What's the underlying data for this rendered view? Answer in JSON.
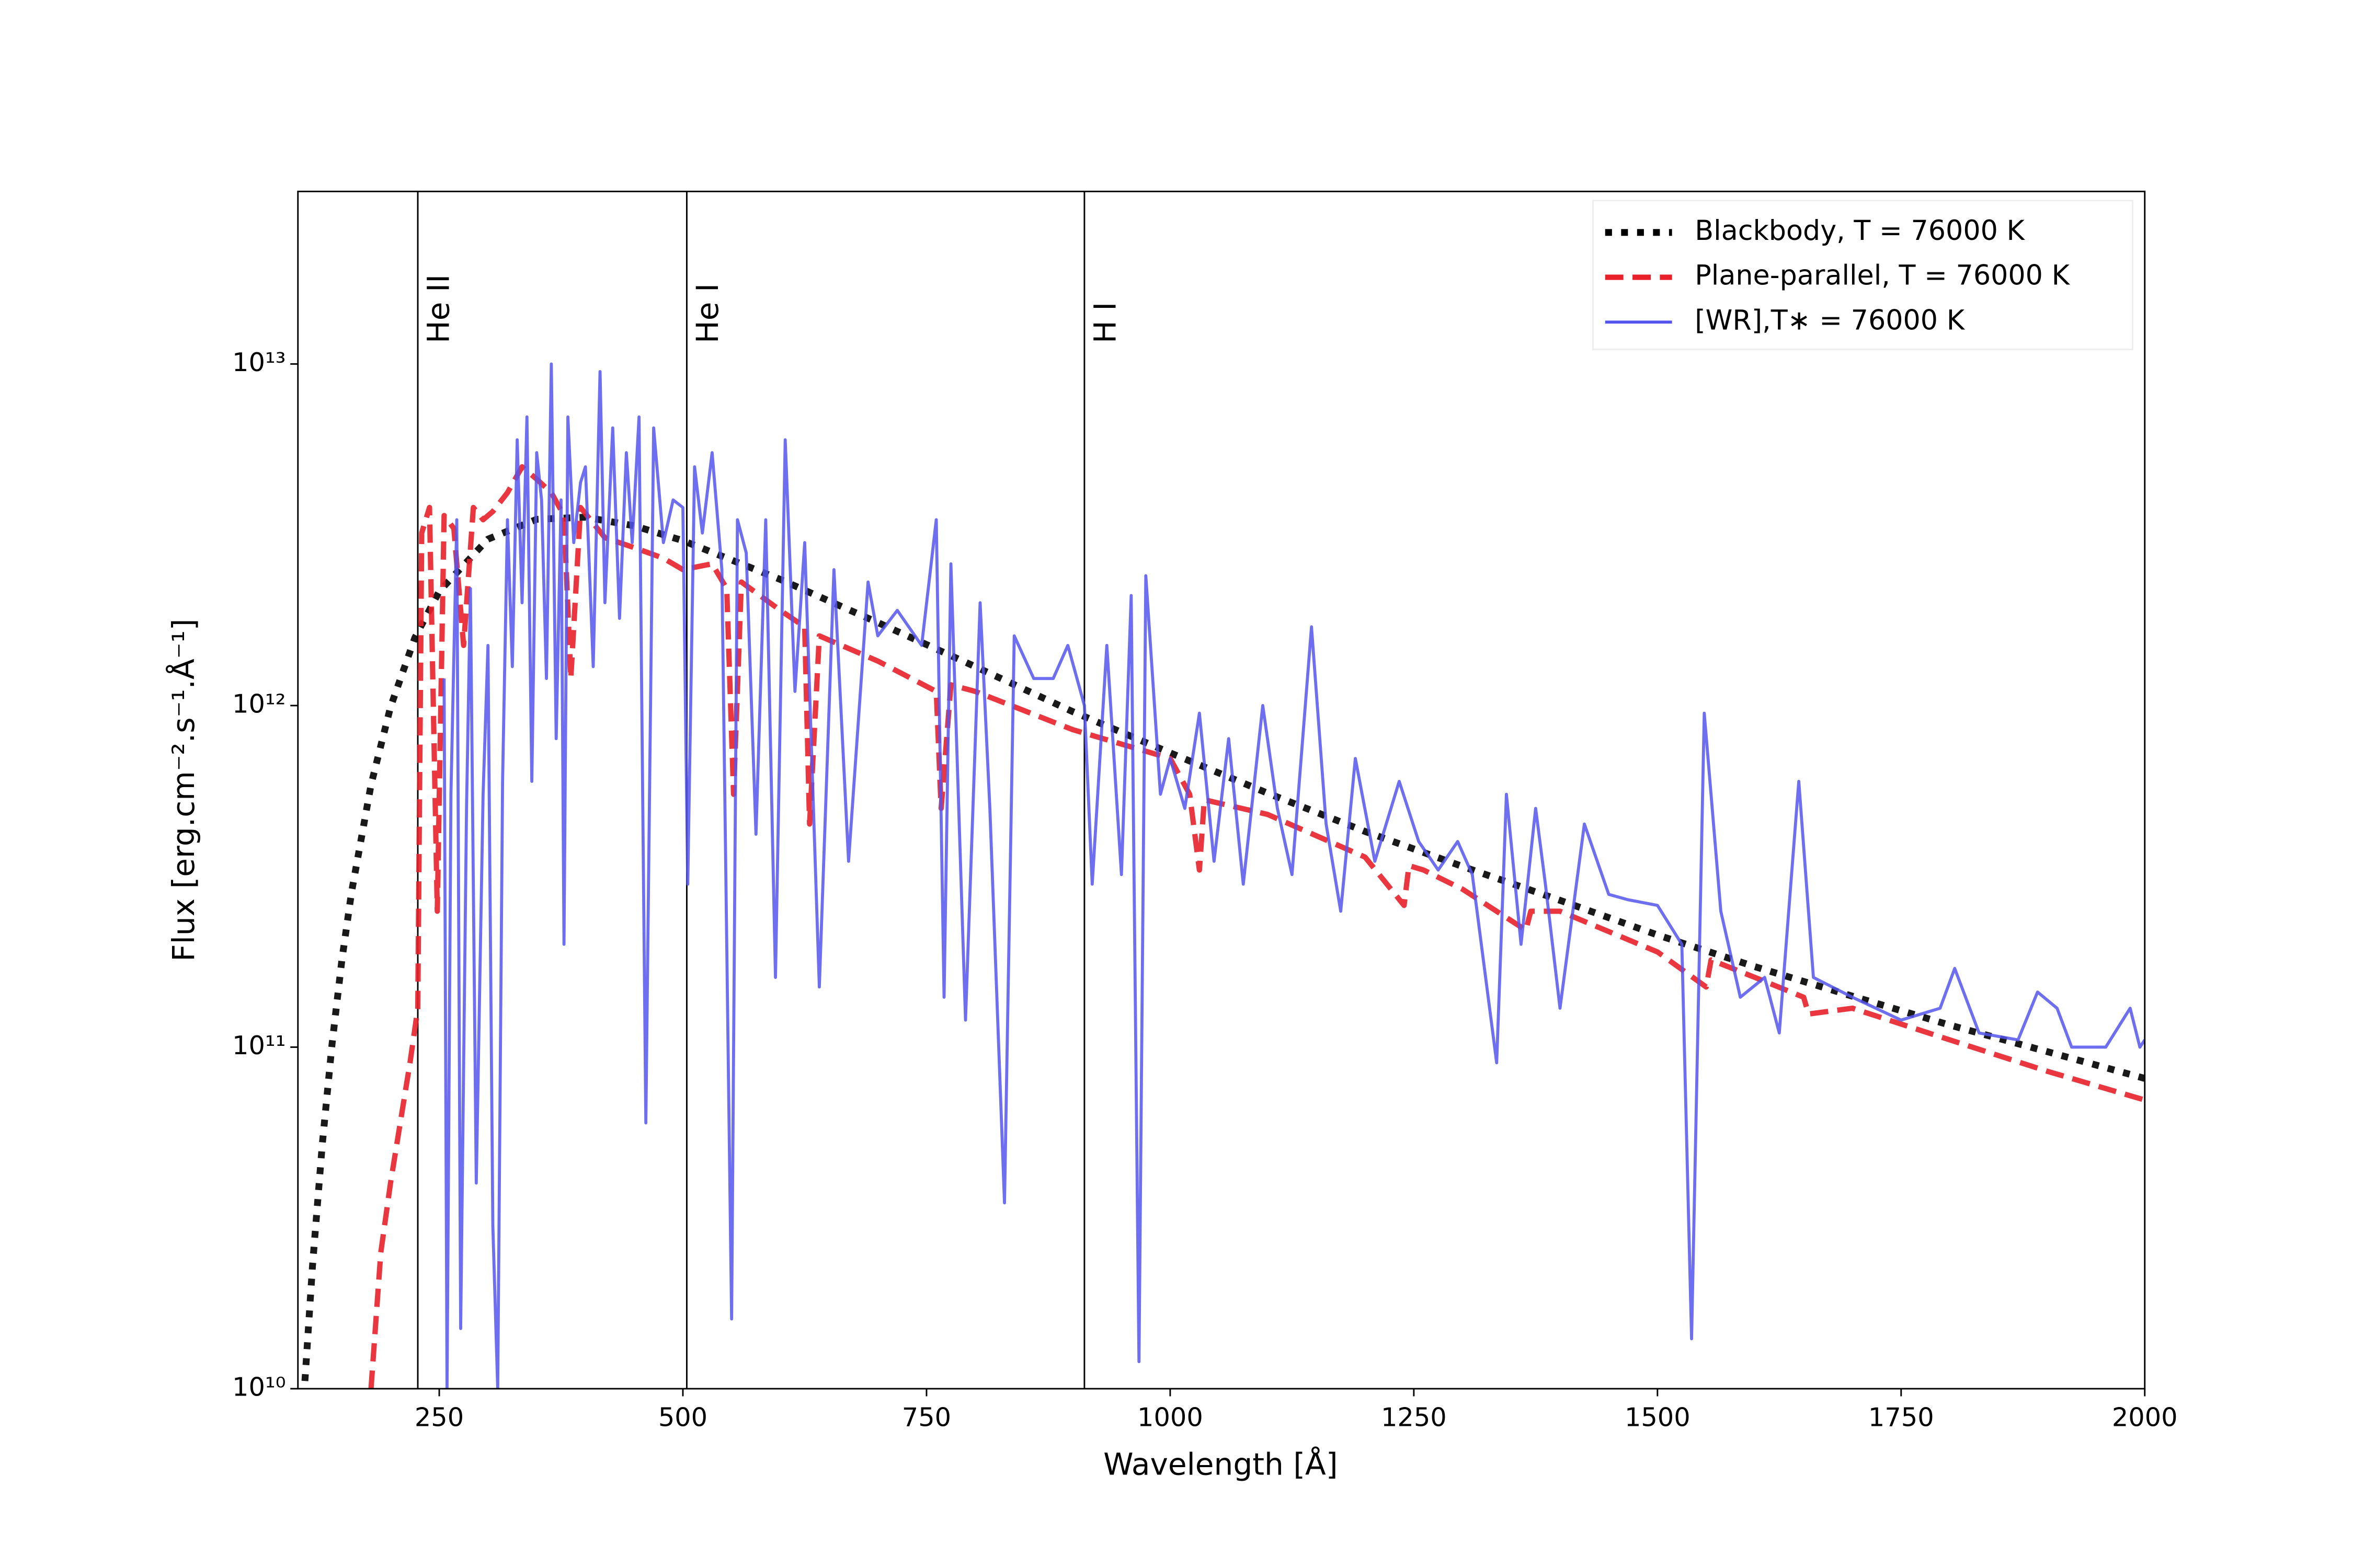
{
  "chart_data": {
    "type": "line",
    "xlabel": "Wavelength [Å]",
    "ylabel": "Flux [erg.cm⁻².s⁻¹.Å⁻¹]",
    "xlim": [
      105,
      2000
    ],
    "ylim": [
      10000000000.0,
      32000000000000.0
    ],
    "log_y": true,
    "grid": false,
    "legend": "upper right",
    "xticks": [
      250,
      500,
      750,
      1000,
      1250,
      1500,
      1750,
      2000
    ],
    "yticks": [
      {
        "value": 10000000000.0,
        "label": "10¹⁰"
      },
      {
        "value": 100000000000.0,
        "label": "10¹¹"
      },
      {
        "value": 1000000000000.0,
        "label": "10¹²"
      },
      {
        "value": 10000000000000.0,
        "label": "10¹³"
      }
    ],
    "annotations": [
      {
        "x": 228,
        "label": "He II"
      },
      {
        "x": 504,
        "label": "He I"
      },
      {
        "x": 912,
        "label": "H I"
      }
    ],
    "series": [
      {
        "name": "Blackbody, T = 76000 K",
        "color": "#000000",
        "style": "dotted",
        "x": [
          110,
          120,
          130,
          140,
          150,
          160,
          180,
          200,
          225,
          250,
          300,
          350,
          400,
          450,
          500,
          600,
          700,
          800,
          900,
          1000,
          1100,
          1200,
          1300,
          1400,
          1500,
          1600,
          1700,
          1800,
          1900,
          2000
        ],
        "values": [
          8500000000.0,
          23000000000.0,
          52000000000.0,
          102000000000.0,
          179000000000.0,
          284000000000.0,
          586000000000.0,
          990000000000.0,
          1580000000000.0,
          2160000000000.0,
          3070000000000.0,
          3510000000000.0,
          3560000000000.0,
          3360000000000.0,
          3040000000000.0,
          2340000000000.0,
          1750000000000.0,
          1300000000000.0,
          960000000000.0,
          727000000000.0,
          554000000000.0,
          428000000000.0,
          338000000000.0,
          269000000000.0,
          213000000000.0,
          172000000000.0,
          141000000000.0,
          116000000000.0,
          97000000000.0,
          81000000000.0
        ]
      },
      {
        "name": "Plane-parallel, T = 76000 K",
        "color": "#e8202a",
        "style": "dashed",
        "x": [
          180,
          190,
          200,
          210,
          220,
          228,
          232,
          240,
          248,
          255,
          265,
          275,
          285,
          295,
          305,
          320,
          335,
          350,
          365,
          378,
          385,
          395,
          420,
          450,
          480,
          500,
          530,
          545,
          552,
          560,
          600,
          625,
          630,
          640,
          700,
          760,
          765,
          775,
          800,
          900,
          1000,
          1020,
          1030,
          1035,
          1100,
          1200,
          1240,
          1245,
          1260,
          1300,
          1365,
          1370,
          1400,
          1500,
          1550,
          1555,
          1600,
          1650,
          1655,
          1700,
          1800,
          1900,
          2000
        ],
        "values": [
          10000000000.0,
          25000000000.0,
          40000000000.0,
          60000000000.0,
          90000000000.0,
          130000000000.0,
          3200000000000.0,
          3800000000000.0,
          250000000000.0,
          3600000000000.0,
          3300000000000.0,
          1500000000000.0,
          3800000000000.0,
          3500000000000.0,
          3700000000000.0,
          4200000000000.0,
          5000000000000.0,
          4600000000000.0,
          4200000000000.0,
          3600000000000.0,
          1200000000000.0,
          3800000000000.0,
          3100000000000.0,
          2900000000000.0,
          2700000000000.0,
          2500000000000.0,
          2600000000000.0,
          2200000000000.0,
          550000000000.0,
          2300000000000.0,
          1900000000000.0,
          1700000000000.0,
          450000000000.0,
          1600000000000.0,
          1350000000000.0,
          1100000000000.0,
          500000000000.0,
          1150000000000.0,
          1100000000000.0,
          850000000000.0,
          700000000000.0,
          550000000000.0,
          330000000000.0,
          530000000000.0,
          480000000000.0,
          360000000000.0,
          260000000000.0,
          340000000000.0,
          330000000000.0,
          290000000000.0,
          220000000000.0,
          250000000000.0,
          250000000000.0,
          190000000000.0,
          150000000000.0,
          180000000000.0,
          160000000000.0,
          140000000000.0,
          125000000000.0,
          130000000000.0,
          105000000000.0,
          85000000000.0,
          70000000000.0
        ]
      },
      {
        "name": "[WR],T∗ = 76000 K",
        "color": "#5555ee",
        "style": "solid",
        "x": [
          255,
          258,
          262,
          268,
          272,
          278,
          282,
          288,
          295,
          300,
          305,
          310,
          315,
          320,
          325,
          330,
          335,
          340,
          345,
          350,
          355,
          360,
          365,
          370,
          375,
          378,
          382,
          388,
          395,
          400,
          408,
          415,
          420,
          428,
          435,
          442,
          448,
          455,
          462,
          470,
          480,
          490,
          500,
          505,
          512,
          520,
          530,
          540,
          550,
          556,
          565,
          575,
          585,
          595,
          605,
          615,
          625,
          640,
          655,
          670,
          690,
          700,
          720,
          745,
          760,
          768,
          775,
          790,
          805,
          815,
          830,
          840,
          860,
          880,
          895,
          912,
          920,
          935,
          950,
          960,
          968,
          975,
          990,
          1000,
          1015,
          1030,
          1045,
          1060,
          1075,
          1095,
          1110,
          1125,
          1145,
          1160,
          1175,
          1190,
          1210,
          1235,
          1255,
          1275,
          1295,
          1310,
          1335,
          1345,
          1360,
          1375,
          1385,
          1400,
          1425,
          1450,
          1470,
          1500,
          1525,
          1535,
          1548,
          1565,
          1585,
          1610,
          1625,
          1645,
          1660,
          1700,
          1750,
          1790,
          1805,
          1830,
          1870,
          1890,
          1910,
          1925,
          1960,
          1985,
          1995,
          2000
        ],
        "values": [
          1200000000000.0,
          10000000000.0,
          550000000000.0,
          3500000000000.0,
          15000000000.0,
          500000000000.0,
          2200000000000.0,
          40000000000.0,
          550000000000.0,
          1500000000000.0,
          30000000000.0,
          10000000000.0,
          600000000000.0,
          3500000000000.0,
          1300000000000.0,
          6000000000000.0,
          2000000000000.0,
          7000000000000.0,
          600000000000.0,
          5500000000000.0,
          4000000000000.0,
          1200000000000.0,
          10000000000000.0,
          800000000000.0,
          4000000000000.0,
          200000000000.0,
          7000000000000.0,
          3000000000000.0,
          4500000000000.0,
          5000000000000.0,
          1300000000000.0,
          9500000000000.0,
          2000000000000.0,
          6500000000000.0,
          1800000000000.0,
          5500000000000.0,
          3000000000000.0,
          7000000000000.0,
          60000000000.0,
          6500000000000.0,
          3000000000000.0,
          4000000000000.0,
          3800000000000.0,
          300000000000.0,
          5000000000000.0,
          3200000000000.0,
          5500000000000.0,
          2500000000000.0,
          16000000000.0,
          3500000000000.0,
          2800000000000.0,
          420000000000.0,
          3500000000000.0,
          160000000000.0,
          6000000000000.0,
          1100000000000.0,
          3000000000000.0,
          150000000000.0,
          2500000000000.0,
          350000000000.0,
          2300000000000.0,
          1600000000000.0,
          1900000000000.0,
          1500000000000.0,
          3500000000000.0,
          140000000000.0,
          2600000000000.0,
          120000000000.0,
          2000000000000.0,
          500000000000.0,
          35000000000.0,
          1600000000000.0,
          1200000000000.0,
          1200000000000.0,
          1500000000000.0,
          1000000000000.0,
          300000000000.0,
          1500000000000.0,
          320000000000.0,
          2100000000000.0,
          12000000000.0,
          2400000000000.0,
          550000000000.0,
          700000000000.0,
          500000000000.0,
          950000000000.0,
          350000000000.0,
          800000000000.0,
          300000000000.0,
          1000000000000.0,
          500000000000.0,
          320000000000.0,
          1700000000000.0,
          450000000000.0,
          250000000000.0,
          700000000000.0,
          350000000000.0,
          600000000000.0,
          400000000000.0,
          330000000000.0,
          400000000000.0,
          320000000000.0,
          90000000000.0,
          550000000000.0,
          200000000000.0,
          500000000000.0,
          300000000000.0,
          130000000000.0,
          450000000000.0,
          280000000000.0,
          270000000000.0,
          260000000000.0,
          200000000000.0,
          14000000000.0,
          950000000000.0,
          250000000000.0,
          140000000000.0,
          160000000000.0,
          110000000000.0,
          600000000000.0,
          160000000000.0,
          140000000000.0,
          120000000000.0,
          130000000000.0,
          170000000000.0,
          110000000000.0,
          105000000000.0,
          145000000000.0,
          130000000000.0,
          100000000000.0,
          100000000000.0,
          130000000000.0,
          100000000000.0,
          105000000000.0
        ]
      }
    ]
  }
}
